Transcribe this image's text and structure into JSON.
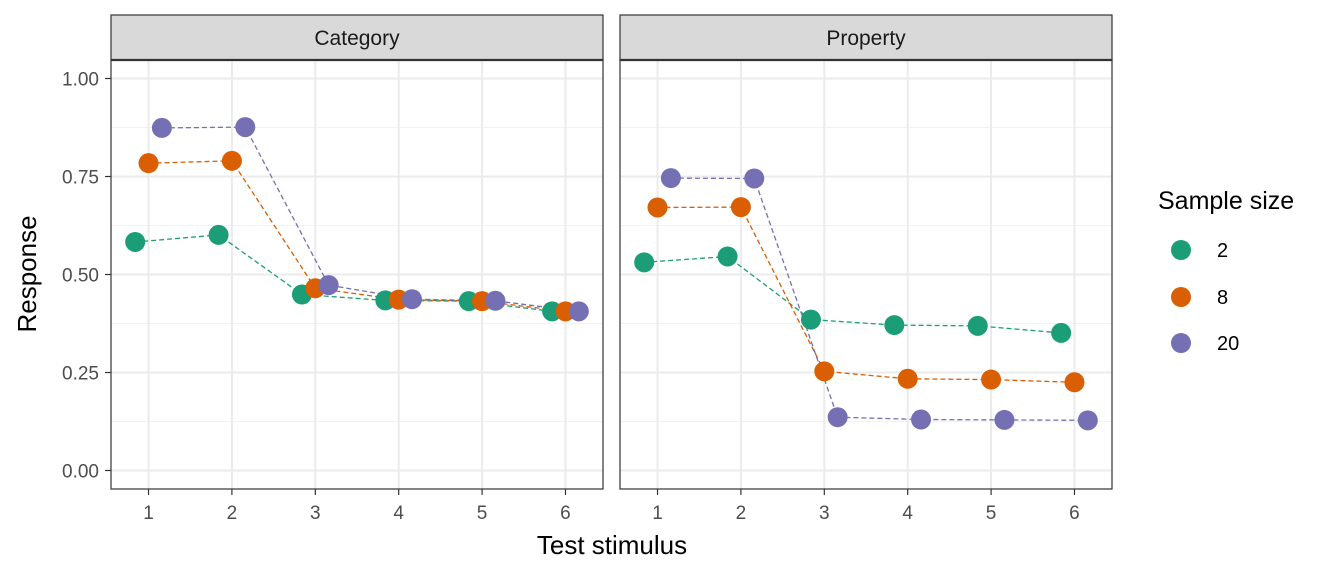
{
  "chart_data": {
    "type": "scatter",
    "facets": [
      "Category",
      "Property"
    ],
    "xlabel": "Test stimulus",
    "ylabel": "Response",
    "x_ticks": [
      "1",
      "2",
      "3",
      "4",
      "5",
      "6"
    ],
    "y_ticks": [
      "0.00",
      "0.25",
      "0.50",
      "0.75",
      "1.00"
    ],
    "ylim": [
      0,
      1.08
    ],
    "xlim": [
      0.55,
      6.45
    ],
    "grid": true,
    "connecting_lines": "dashed",
    "legend": {
      "title": "Sample size",
      "position": "right",
      "entries": [
        "2",
        "8",
        "20"
      ]
    },
    "series": [
      {
        "name": "2",
        "color": "#1B9E77",
        "offset": -0.16,
        "values": {
          "Category": [
            0.583,
            0.601,
            0.449,
            0.434,
            0.432,
            0.406
          ],
          "Property": [
            0.531,
            0.546,
            0.385,
            0.371,
            0.369,
            0.351
          ]
        }
      },
      {
        "name": "8",
        "color": "#D95F02",
        "offset": 0.0,
        "values": {
          "Category": [
            0.784,
            0.79,
            0.465,
            0.436,
            0.432,
            0.406
          ],
          "Property": [
            0.671,
            0.672,
            0.253,
            0.234,
            0.232,
            0.225
          ]
        }
      },
      {
        "name": "20",
        "color": "#7570B3",
        "offset": 0.16,
        "values": {
          "Category": [
            0.874,
            0.876,
            0.473,
            0.437,
            0.433,
            0.406
          ],
          "Property": [
            0.746,
            0.745,
            0.136,
            0.13,
            0.129,
            0.128
          ]
        }
      }
    ]
  }
}
